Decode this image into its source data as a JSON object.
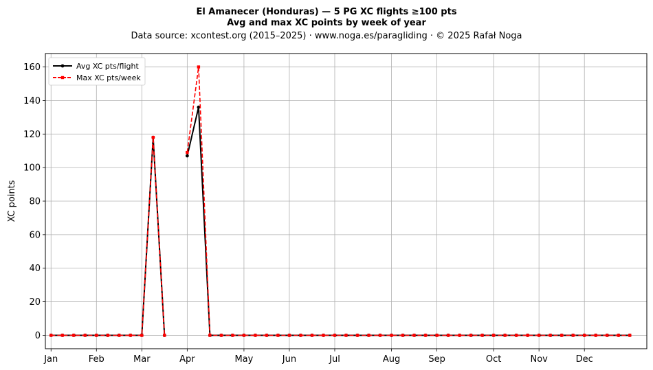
{
  "chart_data": {
    "type": "line",
    "title": "El Amanecer (Honduras)  —  5 PG XC flights ≥100 pts",
    "subtitle": "Avg and max XC points by week of year",
    "source": "Data source: xcontest.org (2015–2025)  ·  www.noga.es/paragliding  ·  © 2025 Rafał Noga",
    "xlabel": "",
    "ylabel": "XC points",
    "x": [
      1,
      2,
      3,
      4,
      5,
      6,
      7,
      8,
      9,
      10,
      11,
      12,
      13,
      14,
      15,
      16,
      17,
      18,
      19,
      20,
      21,
      22,
      23,
      24,
      25,
      26,
      27,
      28,
      29,
      30,
      31,
      32,
      33,
      34,
      35,
      36,
      37,
      38,
      39,
      40,
      41,
      42,
      43,
      44,
      45,
      46,
      47,
      48,
      49,
      50,
      51,
      52
    ],
    "x_ticks": [
      {
        "week": 1,
        "label": "Jan"
      },
      {
        "week": 5,
        "label": "Feb"
      },
      {
        "week": 9,
        "label": "Mar"
      },
      {
        "week": 13,
        "label": "Apr"
      },
      {
        "week": 18,
        "label": "May"
      },
      {
        "week": 22,
        "label": "Jun"
      },
      {
        "week": 26,
        "label": "Jul"
      },
      {
        "week": 31,
        "label": "Aug"
      },
      {
        "week": 35,
        "label": "Sep"
      },
      {
        "week": 40,
        "label": "Oct"
      },
      {
        "week": 44,
        "label": "Nov"
      },
      {
        "week": 48,
        "label": "Dec"
      }
    ],
    "xlim": [
      0.5,
      53.5
    ],
    "ylim": [
      -8,
      168
    ],
    "y_ticks": [
      0,
      20,
      40,
      60,
      80,
      100,
      120,
      140,
      160
    ],
    "grid": true,
    "legend_position": "top-left",
    "series": [
      {
        "name": "Avg XC pts/flight",
        "color": "#000000",
        "style": "solid",
        "marker": "circle",
        "values": [
          0,
          0,
          0,
          0,
          0,
          0,
          0,
          0,
          0,
          118,
          0,
          null,
          107,
          136,
          0,
          0,
          0,
          0,
          0,
          0,
          0,
          0,
          0,
          0,
          0,
          0,
          0,
          0,
          0,
          0,
          0,
          0,
          0,
          0,
          0,
          0,
          0,
          0,
          0,
          0,
          0,
          0,
          0,
          0,
          0,
          0,
          0,
          0,
          0,
          0,
          0,
          0
        ]
      },
      {
        "name": "Max XC pts/week",
        "color": "#ff0000",
        "style": "dashed",
        "marker": "square",
        "values": [
          0,
          0,
          0,
          0,
          0,
          0,
          0,
          0,
          0,
          118,
          0,
          null,
          109,
          160,
          0,
          0,
          0,
          0,
          0,
          0,
          0,
          0,
          0,
          0,
          0,
          0,
          0,
          0,
          0,
          0,
          0,
          0,
          0,
          0,
          0,
          0,
          0,
          0,
          0,
          0,
          0,
          0,
          0,
          0,
          0,
          0,
          0,
          0,
          0,
          0,
          0,
          0
        ]
      }
    ]
  }
}
